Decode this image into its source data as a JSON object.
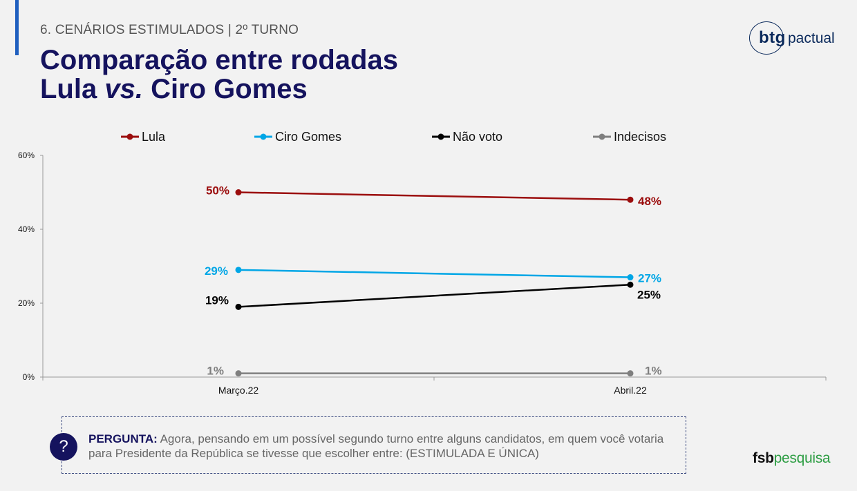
{
  "header": {
    "section": "6. CENÁRIOS ESTIMULADOS | 2º TURNO",
    "title_line1": "Comparação entre rodadas",
    "title_line2_a": "Lula ",
    "title_line2_b": "vs.",
    "title_line2_c": " Ciro Gomes"
  },
  "logos": {
    "btg": "btg",
    "pactual": "pactual",
    "fsb_a": "fsb",
    "fsb_b": "pesquisa"
  },
  "colors": {
    "title": "#15135e",
    "accent": "#1f5fbf",
    "lula": "#9b0d0d",
    "ciro": "#00a6e6",
    "nao_voto": "#000000",
    "indecisos": "#7f7f7f"
  },
  "question": {
    "icon": "question-icon",
    "label": "PERGUNTA:",
    "text": " Agora, pensando em um possível segundo turno entre alguns candidatos, em quem você votaria para Presidente da República se tivesse que escolher entre: (ESTIMULADA E ÚNICA)"
  },
  "chart_data": {
    "type": "line",
    "categories": [
      "Março.22",
      "Abril.22"
    ],
    "ylim": [
      0,
      60
    ],
    "yticks": [
      0,
      20,
      40,
      60
    ],
    "ytick_labels": [
      "0%",
      "20%",
      "40%",
      "60%"
    ],
    "legend_position": "top",
    "grid": false,
    "series": [
      {
        "name": "Lula",
        "values": [
          50,
          48
        ],
        "labels": [
          "50%",
          "48%"
        ],
        "color": "#9b0d0d"
      },
      {
        "name": "Ciro Gomes",
        "values": [
          29,
          27
        ],
        "labels": [
          "29%",
          "27%"
        ],
        "color": "#00a6e6"
      },
      {
        "name": "Não voto",
        "values": [
          19,
          25
        ],
        "labels": [
          "19%",
          "25%"
        ],
        "color": "#000000"
      },
      {
        "name": "Indecisos",
        "values": [
          1,
          1
        ],
        "labels": [
          "1%",
          "1%"
        ],
        "color": "#7f7f7f"
      }
    ]
  }
}
